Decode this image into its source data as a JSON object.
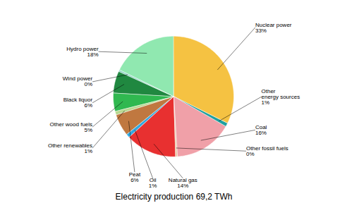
{
  "chart_data": {
    "type": "pie",
    "title": "Electricity production 69,2 TWh",
    "categories": [
      "Nuclear power",
      "Other\nenergy sources",
      "Coal",
      "Other fossil fuels",
      "Natural gas",
      "Oil",
      "Peat",
      "Other renewables",
      "Other wood fuels",
      "Black liquor",
      "Wind power",
      "Hydro power"
    ],
    "values": [
      33,
      1,
      16,
      0.5,
      14,
      1,
      6,
      1,
      5,
      6,
      0.5,
      18
    ],
    "value_labels": [
      "33%",
      "1%",
      "16%",
      "0%",
      "14%",
      "1%",
      "6%",
      "1%",
      "5%",
      "6%",
      "0%",
      "18%"
    ],
    "colors": [
      "#F5C242",
      "#20A0A0",
      "#F0A0A8",
      "#E8C8A0",
      "#E83030",
      "#30A8E0",
      "#C07840",
      "#B8D890",
      "#30B850",
      "#208840",
      "#90D8C8",
      "#90E8B0"
    ]
  }
}
